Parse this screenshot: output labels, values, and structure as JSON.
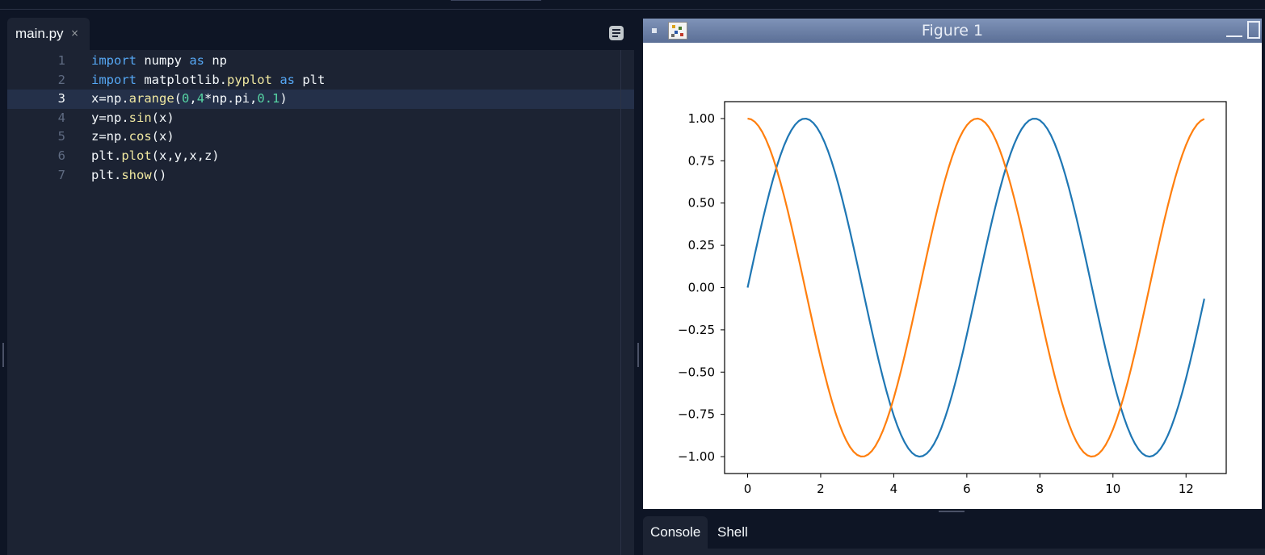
{
  "editor": {
    "tab_label": "main.py",
    "tab_close": "×",
    "active_line": 3,
    "lines": [
      {
        "num": "1",
        "tokens": [
          {
            "t": "import",
            "c": "kw"
          },
          {
            "t": " numpy ",
            "c": ""
          },
          {
            "t": "as",
            "c": "kw"
          },
          {
            "t": " np",
            "c": ""
          }
        ]
      },
      {
        "num": "2",
        "tokens": [
          {
            "t": "import",
            "c": "kw"
          },
          {
            "t": " matplotlib.",
            "c": ""
          },
          {
            "t": "pyplot",
            "c": "fn"
          },
          {
            "t": " ",
            "c": ""
          },
          {
            "t": "as",
            "c": "kw"
          },
          {
            "t": " plt",
            "c": ""
          }
        ]
      },
      {
        "num": "3",
        "tokens": [
          {
            "t": "x=np.",
            "c": ""
          },
          {
            "t": "arange",
            "c": "fn"
          },
          {
            "t": "(",
            "c": ""
          },
          {
            "t": "0",
            "c": "num"
          },
          {
            "t": ",",
            "c": ""
          },
          {
            "t": "4",
            "c": "num"
          },
          {
            "t": "*np.pi,",
            "c": ""
          },
          {
            "t": "0.1",
            "c": "num"
          },
          {
            "t": ")",
            "c": ""
          }
        ]
      },
      {
        "num": "4",
        "tokens": [
          {
            "t": "y=np.",
            "c": ""
          },
          {
            "t": "sin",
            "c": "fn"
          },
          {
            "t": "(x)",
            "c": ""
          }
        ]
      },
      {
        "num": "5",
        "tokens": [
          {
            "t": "z=np.",
            "c": ""
          },
          {
            "t": "cos",
            "c": "fn"
          },
          {
            "t": "(x)",
            "c": ""
          }
        ]
      },
      {
        "num": "6",
        "tokens": [
          {
            "t": "plt.",
            "c": ""
          },
          {
            "t": "plot",
            "c": "fn"
          },
          {
            "t": "(x,y,x,z)",
            "c": ""
          }
        ]
      },
      {
        "num": "7",
        "tokens": [
          {
            "t": "plt.",
            "c": ""
          },
          {
            "t": "show",
            "c": "fn"
          },
          {
            "t": "()",
            "c": ""
          }
        ]
      }
    ]
  },
  "figure_window": {
    "title": "Figure 1"
  },
  "bottom_panel": {
    "tabs": [
      "Console",
      "Shell"
    ],
    "active_tab": "Console"
  },
  "colors": {
    "series_sin": "#1f77b4",
    "series_cos": "#ff7f0e",
    "editor_bg": "#1c2333",
    "active_line_bg": "#243049"
  },
  "chart_data": {
    "type": "line",
    "title": "",
    "xlabel": "",
    "ylabel": "",
    "xlim": [
      -0.63,
      13.1
    ],
    "ylim": [
      -1.1,
      1.1
    ],
    "xticks": [
      0,
      2,
      4,
      6,
      8,
      10,
      12
    ],
    "xtick_labels": [
      "0",
      "2",
      "4",
      "6",
      "8",
      "10",
      "12"
    ],
    "yticks": [
      1.0,
      0.75,
      0.5,
      0.25,
      0.0,
      -0.25,
      -0.5,
      -0.75,
      -1.0
    ],
    "ytick_labels": [
      "1.00",
      "0.75",
      "0.50",
      "0.25",
      "0.00",
      "−0.25",
      "−0.50",
      "−0.75",
      "−1.00"
    ],
    "grid": false,
    "x": {
      "start": 0,
      "stop": 12.566,
      "step": 0.1
    },
    "series": [
      {
        "function": "sin",
        "color": "#1f77b4"
      },
      {
        "function": "cos",
        "color": "#ff7f0e"
      }
    ]
  }
}
